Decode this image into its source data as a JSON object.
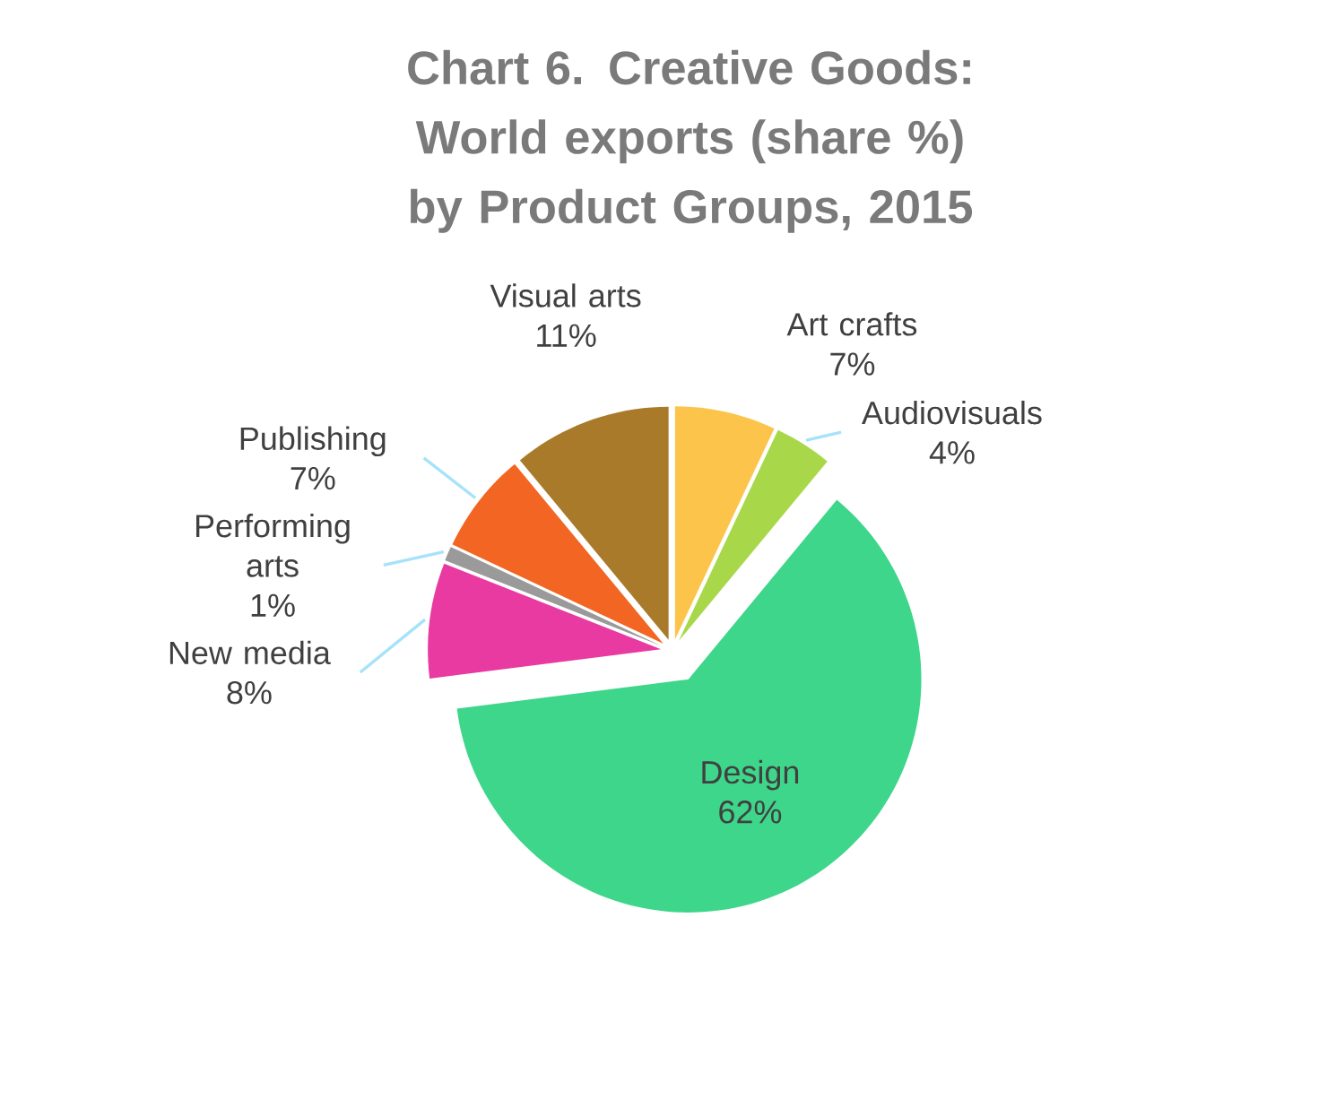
{
  "chart_data": {
    "type": "pie",
    "title": "Chart 6.  Creative Goods: World exports (share %) by Product Groups, 2015",
    "categories": [
      "Art crafts",
      "Audiovisuals",
      "Design",
      "New media",
      "Performing arts",
      "Publishing",
      "Visual arts"
    ],
    "values": [
      7,
      4,
      62,
      8,
      1,
      7,
      11
    ],
    "value_labels": [
      "7%",
      "4%",
      "62%",
      "8%",
      "1%",
      "7%",
      "11%"
    ],
    "colors": [
      "#fcc44a",
      "#a8d84a",
      "#3ed68a",
      "#e83aa0",
      "#9a9a9a",
      "#f26522",
      "#a87a2a"
    ]
  }
}
